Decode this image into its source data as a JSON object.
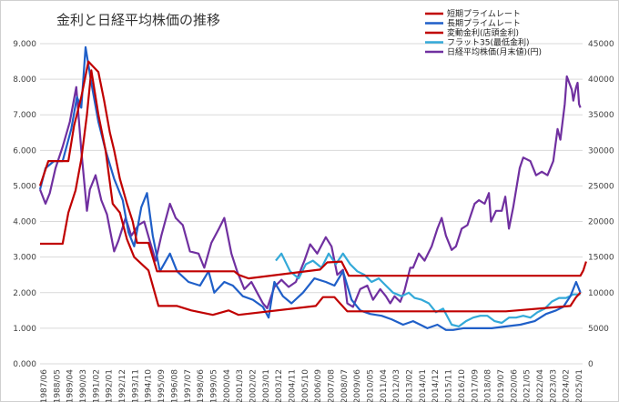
{
  "chart_data": {
    "type": "line",
    "title": "金利と日経平均株価の推移",
    "x_labels": [
      "1987/06",
      "1988/05",
      "1989/04",
      "1990/03",
      "1991/02",
      "1992/01",
      "1992/12",
      "1993/11",
      "1994/10",
      "1995/09",
      "1996/08",
      "1997/07",
      "1998/06",
      "1999/05",
      "2000/04",
      "2001/03",
      "2002/02",
      "2003/01",
      "2003/12",
      "2004/11",
      "2005/10",
      "2006/09",
      "2007/08",
      "2008/07",
      "2009/06",
      "2010/05",
      "2011/04",
      "2012/03",
      "2013/02",
      "2014/01",
      "2014/12",
      "2015/11",
      "2016/10",
      "2017/09",
      "2018/08",
      "2019/07",
      "2020/06",
      "2021/05",
      "2022/04",
      "2023/03",
      "2024/02",
      "2025/01"
    ],
    "y_left": {
      "ylim": [
        0,
        9
      ],
      "ticks": [
        "0.000",
        "1.000",
        "2.000",
        "3.000",
        "4.000",
        "5.000",
        "6.000",
        "7.000",
        "8.000",
        "9.000"
      ]
    },
    "y_right": {
      "ylim": [
        0,
        45000
      ],
      "ticks": [
        "0",
        "5000",
        "10000",
        "15000",
        "20000",
        "25000",
        "30000",
        "35000",
        "40000",
        "45000"
      ]
    },
    "legend": {
      "position": "top-right"
    },
    "grid": "horizontal",
    "series": [
      {
        "name": "短期プライムレート",
        "axis": "left",
        "color": "#C00000",
        "points": [
          [
            1987.42,
            3.375
          ],
          [
            1989.0,
            3.375
          ],
          [
            1989.4,
            4.25
          ],
          [
            1989.9,
            4.875
          ],
          [
            1990.3,
            5.75
          ],
          [
            1990.7,
            7.0
          ],
          [
            1991.0,
            8.25
          ],
          [
            1991.5,
            7.0
          ],
          [
            1992.0,
            6.0
          ],
          [
            1992.5,
            4.5
          ],
          [
            1993.0,
            4.25
          ],
          [
            1993.5,
            3.5
          ],
          [
            1994.0,
            3.0
          ],
          [
            1995.0,
            2.625
          ],
          [
            1995.7,
            1.625
          ],
          [
            1997.0,
            1.625
          ],
          [
            1998.0,
            1.5
          ],
          [
            1999.5,
            1.375
          ],
          [
            2000.6,
            1.5
          ],
          [
            2001.3,
            1.375
          ],
          [
            2006.7,
            1.625
          ],
          [
            2007.2,
            1.875
          ],
          [
            2008.0,
            1.875
          ],
          [
            2008.9,
            1.475
          ],
          [
            2020.0,
            1.475
          ],
          [
            2024.5,
            1.625
          ],
          [
            2024.9,
            1.875
          ],
          [
            2025.2,
            2.0
          ]
        ]
      },
      {
        "name": "長期プライムレート",
        "axis": "left",
        "color": "#1F5FC8",
        "points": [
          [
            1987.42,
            4.9
          ],
          [
            1987.8,
            5.5
          ],
          [
            1988.4,
            5.7
          ],
          [
            1989.0,
            5.7
          ],
          [
            1989.6,
            6.6
          ],
          [
            1990.0,
            7.5
          ],
          [
            1990.3,
            7.2
          ],
          [
            1990.6,
            8.9
          ],
          [
            1991.0,
            7.9
          ],
          [
            1991.5,
            6.8
          ],
          [
            1992.0,
            6.0
          ],
          [
            1992.6,
            5.2
          ],
          [
            1993.2,
            4.6
          ],
          [
            1993.6,
            3.7
          ],
          [
            1994.0,
            3.3
          ],
          [
            1994.5,
            4.4
          ],
          [
            1994.9,
            4.8
          ],
          [
            1995.3,
            3.6
          ],
          [
            1995.8,
            2.6
          ],
          [
            1996.5,
            3.1
          ],
          [
            1997.0,
            2.6
          ],
          [
            1997.8,
            2.3
          ],
          [
            1998.6,
            2.2
          ],
          [
            1999.2,
            2.6
          ],
          [
            1999.6,
            2.0
          ],
          [
            2000.3,
            2.3
          ],
          [
            2000.9,
            2.2
          ],
          [
            2001.6,
            1.9
          ],
          [
            2002.3,
            1.8
          ],
          [
            2003.0,
            1.6
          ],
          [
            2003.4,
            1.3
          ],
          [
            2003.8,
            2.3
          ],
          [
            2004.4,
            1.9
          ],
          [
            2005.0,
            1.7
          ],
          [
            2005.8,
            2.0
          ],
          [
            2006.6,
            2.4
          ],
          [
            2007.4,
            2.3
          ],
          [
            2008.0,
            2.2
          ],
          [
            2008.6,
            2.6
          ],
          [
            2009.2,
            1.8
          ],
          [
            2009.8,
            1.5
          ],
          [
            2010.5,
            1.4
          ],
          [
            2011.3,
            1.35
          ],
          [
            2012.0,
            1.25
          ],
          [
            2012.8,
            1.1
          ],
          [
            2013.5,
            1.2
          ],
          [
            2014.5,
            1.0
          ],
          [
            2015.2,
            1.1
          ],
          [
            2015.8,
            0.95
          ],
          [
            2016.3,
            0.95
          ],
          [
            2017.0,
            1.0
          ],
          [
            2018.0,
            1.0
          ],
          [
            2019.0,
            1.0
          ],
          [
            2020.0,
            1.05
          ],
          [
            2021.0,
            1.1
          ],
          [
            2022.0,
            1.2
          ],
          [
            2022.8,
            1.4
          ],
          [
            2023.5,
            1.5
          ],
          [
            2024.0,
            1.6
          ],
          [
            2024.5,
            1.9
          ],
          [
            2024.9,
            2.3
          ],
          [
            2025.2,
            2.0
          ]
        ]
      },
      {
        "name": "変動金利(店頭金利)",
        "axis": "left",
        "color": "#C00000",
        "points": [
          [
            1987.42,
            5.0
          ],
          [
            1988.0,
            5.7
          ],
          [
            1989.4,
            5.7
          ],
          [
            1989.8,
            6.7
          ],
          [
            1990.3,
            7.5
          ],
          [
            1990.8,
            8.5
          ],
          [
            1991.5,
            8.2
          ],
          [
            1991.9,
            7.4
          ],
          [
            1992.3,
            6.5
          ],
          [
            1992.6,
            6.0
          ],
          [
            1993.0,
            5.2
          ],
          [
            1993.5,
            4.5
          ],
          [
            1993.9,
            4.0
          ],
          [
            1994.2,
            3.4
          ],
          [
            1995.0,
            3.4
          ],
          [
            1995.6,
            2.6
          ],
          [
            2001.0,
            2.6
          ],
          [
            2001.3,
            2.5
          ],
          [
            2002.0,
            2.4
          ],
          [
            2007.0,
            2.65
          ],
          [
            2007.5,
            2.85
          ],
          [
            2008.5,
            2.875
          ],
          [
            2009.0,
            2.475
          ],
          [
            2025.2,
            2.475
          ],
          [
            2025.4,
            2.625
          ],
          [
            2025.6,
            2.875
          ]
        ]
      },
      {
        "name": "フラット35(最低金利)",
        "axis": "left",
        "color": "#33A9D8",
        "points": [
          [
            2003.9,
            2.9
          ],
          [
            2004.3,
            3.1
          ],
          [
            2004.9,
            2.6
          ],
          [
            2005.5,
            2.4
          ],
          [
            2006.0,
            2.8
          ],
          [
            2006.5,
            2.9
          ],
          [
            2007.1,
            2.7
          ],
          [
            2007.6,
            3.1
          ],
          [
            2008.1,
            2.8
          ],
          [
            2008.6,
            3.1
          ],
          [
            2009.1,
            2.8
          ],
          [
            2009.6,
            2.6
          ],
          [
            2010.1,
            2.5
          ],
          [
            2010.6,
            2.3
          ],
          [
            2011.1,
            2.4
          ],
          [
            2011.6,
            2.2
          ],
          [
            2012.1,
            2.0
          ],
          [
            2012.7,
            1.9
          ],
          [
            2013.2,
            2.0
          ],
          [
            2013.6,
            1.85
          ],
          [
            2014.1,
            1.8
          ],
          [
            2014.6,
            1.7
          ],
          [
            2015.1,
            1.45
          ],
          [
            2015.6,
            1.55
          ],
          [
            2016.2,
            1.1
          ],
          [
            2016.7,
            1.05
          ],
          [
            2017.2,
            1.2
          ],
          [
            2017.7,
            1.3
          ],
          [
            2018.2,
            1.35
          ],
          [
            2018.7,
            1.35
          ],
          [
            2019.2,
            1.2
          ],
          [
            2019.7,
            1.15
          ],
          [
            2020.2,
            1.3
          ],
          [
            2020.7,
            1.3
          ],
          [
            2021.2,
            1.35
          ],
          [
            2021.7,
            1.3
          ],
          [
            2022.2,
            1.45
          ],
          [
            2022.7,
            1.55
          ],
          [
            2023.2,
            1.75
          ],
          [
            2023.7,
            1.85
          ],
          [
            2024.2,
            1.85
          ],
          [
            2024.7,
            1.95
          ],
          [
            2025.2,
            1.95
          ]
        ]
      },
      {
        "name": "日経平均株価(月末値)(円)",
        "axis": "right",
        "color": "#7030A0",
        "points": [
          [
            1987.42,
            24500
          ],
          [
            1987.8,
            22500
          ],
          [
            1988.1,
            24000
          ],
          [
            1988.5,
            27500
          ],
          [
            1989.0,
            30500
          ],
          [
            1989.5,
            34000
          ],
          [
            1989.95,
            38900
          ],
          [
            1990.3,
            30000
          ],
          [
            1990.7,
            21500
          ],
          [
            1990.9,
            24500
          ],
          [
            1991.3,
            26500
          ],
          [
            1991.7,
            23000
          ],
          [
            1992.1,
            21000
          ],
          [
            1992.6,
            15800
          ],
          [
            1992.9,
            17300
          ],
          [
            1993.4,
            20500
          ],
          [
            1993.8,
            18000
          ],
          [
            1994.3,
            19500
          ],
          [
            1994.7,
            20000
          ],
          [
            1995.1,
            17200
          ],
          [
            1995.5,
            14500
          ],
          [
            1995.9,
            18000
          ],
          [
            1996.5,
            22500
          ],
          [
            1996.9,
            20500
          ],
          [
            1997.4,
            19500
          ],
          [
            1997.9,
            15800
          ],
          [
            1998.5,
            15500
          ],
          [
            1998.9,
            13500
          ],
          [
            1999.4,
            17000
          ],
          [
            1999.9,
            18900
          ],
          [
            2000.3,
            20500
          ],
          [
            2000.8,
            15500
          ],
          [
            2001.2,
            13000
          ],
          [
            2001.7,
            10500
          ],
          [
            2002.2,
            11500
          ],
          [
            2002.6,
            10000
          ],
          [
            2003.0,
            8500
          ],
          [
            2003.3,
            7800
          ],
          [
            2003.8,
            10800
          ],
          [
            2004.3,
            11800
          ],
          [
            2004.8,
            10800
          ],
          [
            2005.3,
            11500
          ],
          [
            2005.9,
            14500
          ],
          [
            2006.3,
            16800
          ],
          [
            2006.8,
            15500
          ],
          [
            2007.4,
            17800
          ],
          [
            2007.8,
            16500
          ],
          [
            2008.2,
            12500
          ],
          [
            2008.6,
            13200
          ],
          [
            2008.9,
            8500
          ],
          [
            2009.3,
            8000
          ],
          [
            2009.8,
            10500
          ],
          [
            2010.3,
            11000
          ],
          [
            2010.7,
            9000
          ],
          [
            2011.2,
            10500
          ],
          [
            2011.6,
            9500
          ],
          [
            2011.9,
            8500
          ],
          [
            2012.2,
            9500
          ],
          [
            2012.6,
            8700
          ],
          [
            2012.9,
            10300
          ],
          [
            2013.3,
            13500
          ],
          [
            2013.5,
            13500
          ],
          [
            2013.9,
            15500
          ],
          [
            2014.3,
            14500
          ],
          [
            2014.8,
            16500
          ],
          [
            2015.2,
            19000
          ],
          [
            2015.5,
            20500
          ],
          [
            2015.8,
            18000
          ],
          [
            2016.2,
            16000
          ],
          [
            2016.5,
            16500
          ],
          [
            2016.9,
            19000
          ],
          [
            2017.3,
            19500
          ],
          [
            2017.8,
            22500
          ],
          [
            2018.1,
            23000
          ],
          [
            2018.5,
            22500
          ],
          [
            2018.8,
            24000
          ],
          [
            2018.95,
            20000
          ],
          [
            2019.3,
            21500
          ],
          [
            2019.7,
            21500
          ],
          [
            2019.95,
            23500
          ],
          [
            2020.2,
            19000
          ],
          [
            2020.5,
            22000
          ],
          [
            2020.95,
            27500
          ],
          [
            2021.2,
            29000
          ],
          [
            2021.7,
            28500
          ],
          [
            2022.1,
            26500
          ],
          [
            2022.5,
            27000
          ],
          [
            2022.9,
            26500
          ],
          [
            2023.3,
            28500
          ],
          [
            2023.6,
            33000
          ],
          [
            2023.8,
            31500
          ],
          [
            2024.1,
            36500
          ],
          [
            2024.25,
            40400
          ],
          [
            2024.6,
            38500
          ],
          [
            2024.7,
            37000
          ],
          [
            2024.9,
            38900
          ],
          [
            2025.0,
            39500
          ],
          [
            2025.1,
            36500
          ],
          [
            2025.2,
            36000
          ]
        ]
      }
    ]
  }
}
